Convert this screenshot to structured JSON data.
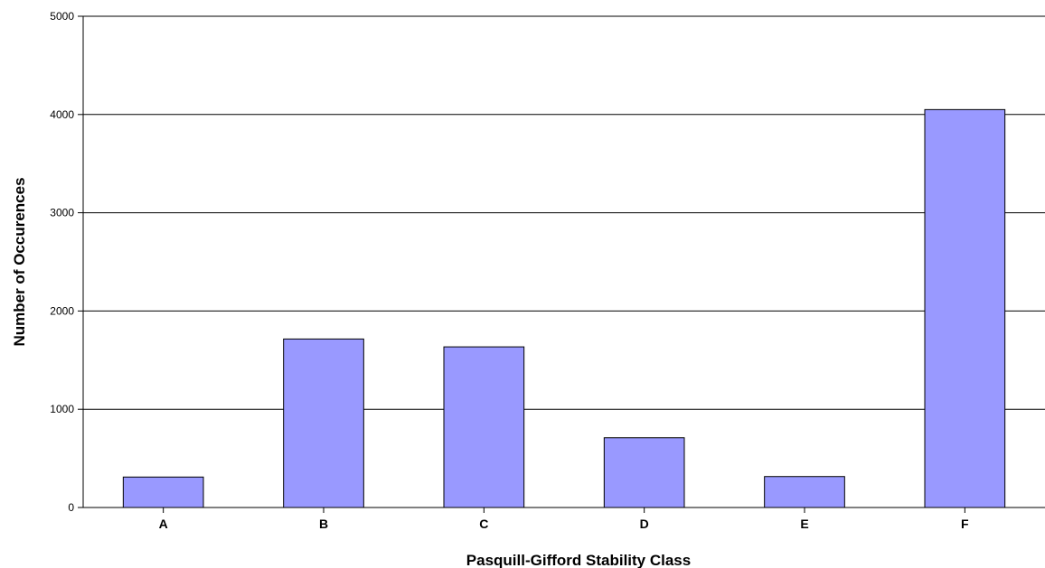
{
  "chart_data": {
    "type": "bar",
    "title": "",
    "xlabel": "Pasquill-Gifford Stability Class",
    "ylabel": "Number of Occurences",
    "categories": [
      "A",
      "B",
      "C",
      "D",
      "E",
      "F"
    ],
    "values": [
      310,
      1715,
      1635,
      710,
      315,
      4050
    ],
    "ylim": [
      0,
      5000
    ],
    "yticks": [
      "0",
      "1000",
      "2000",
      "3000",
      "4000",
      "5000"
    ],
    "grid": true,
    "legend": "none",
    "bar_color": "#9999ff",
    "bar_edge_color": "#000000"
  }
}
